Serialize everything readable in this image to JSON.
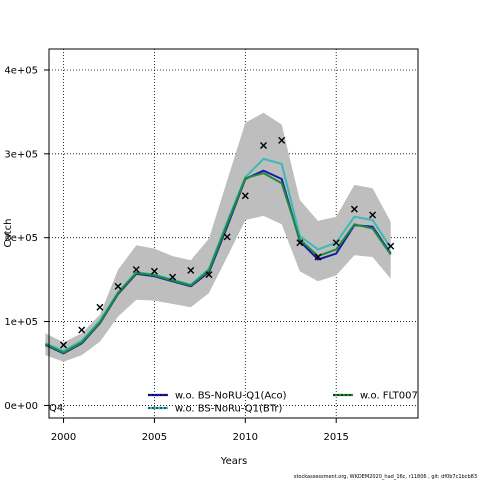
{
  "chart_data": {
    "type": "line",
    "xlabel": "Years",
    "ylabel": "Catch",
    "xlim": [
      1999.2,
      2019.5
    ],
    "ylim": [
      -15000,
      425000
    ],
    "x_ticks": [
      2000,
      2005,
      2010,
      2015
    ],
    "y_ticks": [
      0,
      100000,
      200000,
      300000,
      400000
    ],
    "y_tick_labels": [
      "0e+00",
      "1e+05",
      "2e+05",
      "3e+05",
      "4e+05"
    ],
    "grid": true,
    "grid_style": "dotted",
    "legend_position": "bottom",
    "corner_label": "Q4",
    "x": [
      1999,
      2000,
      2001,
      2002,
      2003,
      2004,
      2005,
      2006,
      2007,
      2008,
      2009,
      2010,
      2011,
      2012,
      2013,
      2014,
      2015,
      2016,
      2017,
      2018
    ],
    "band": {
      "color": "#bebebe",
      "lower": [
        60000,
        52000,
        60000,
        76000,
        106000,
        126000,
        125000,
        121000,
        117000,
        134000,
        177000,
        221000,
        226000,
        216000,
        160000,
        148000,
        155000,
        179000,
        177000,
        151000
      ],
      "upper": [
        86000,
        75000,
        86000,
        108000,
        162000,
        191000,
        187000,
        178000,
        173000,
        199000,
        268000,
        337000,
        349000,
        335000,
        245000,
        220000,
        225000,
        263000,
        259000,
        219000
      ]
    },
    "observed": {
      "marker": "x",
      "color": "#000000",
      "x": [
        2000,
        2001,
        2002,
        2003,
        2004,
        2005,
        2006,
        2007,
        2008,
        2009,
        2010,
        2011,
        2012,
        2013,
        2014,
        2015,
        2016,
        2017,
        2018
      ],
      "values": [
        72000,
        90000,
        117000,
        142000,
        162000,
        160000,
        153000,
        161000,
        156000,
        201000,
        250000,
        310000,
        316000,
        194000,
        177000,
        194000,
        234000,
        227000,
        190000
      ]
    },
    "series": [
      {
        "name": "w.o. BS-NoRU-Q1(Aco)",
        "color": "#1a1aa6",
        "style": "dashed",
        "values": [
          72000,
          62000,
          74000,
          98000,
          133000,
          157000,
          154000,
          148000,
          142000,
          159000,
          213000,
          270000,
          280000,
          270000,
          196000,
          174000,
          181000,
          215000,
          213000,
          181000
        ]
      },
      {
        "name": "w.o. BS-NoRu-Q1(BTr)",
        "color": "#3cb8b8",
        "style": "solid",
        "values": [
          74000,
          65000,
          77000,
          101000,
          135000,
          159000,
          156000,
          150000,
          144000,
          163000,
          219000,
          272000,
          294000,
          288000,
          202000,
          186000,
          194000,
          225000,
          221000,
          188000
        ]
      },
      {
        "name": "w.o. FLT007",
        "color": "#1e8b3c",
        "style": "dashed",
        "values": [
          73000,
          63000,
          75000,
          99000,
          134000,
          158000,
          155000,
          149000,
          143000,
          161000,
          216000,
          271000,
          277000,
          265000,
          198000,
          178000,
          186000,
          216000,
          211000,
          180000
        ]
      }
    ]
  },
  "footer": "stockassessment.org, WKDEM2020_had_16c, r11806 , git: df0b7c1bcb83"
}
